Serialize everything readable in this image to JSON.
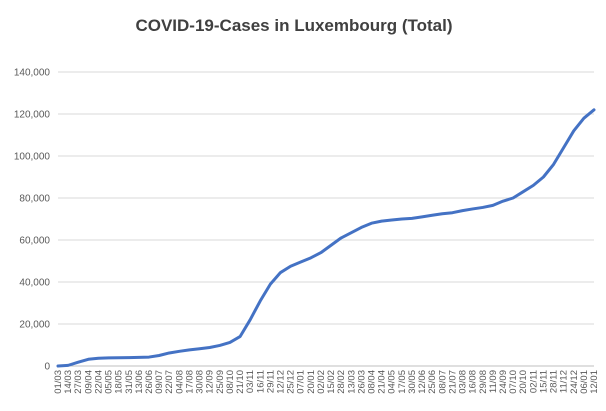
{
  "chart_data": {
    "type": "line",
    "title": "COVID-19-Cases in Luxembourg (Total)",
    "xlabel": "",
    "ylabel": "",
    "ylim": [
      0,
      140000
    ],
    "yticks": [
      0,
      20000,
      40000,
      60000,
      80000,
      100000,
      120000,
      140000
    ],
    "ytick_labels": [
      "0",
      "20,000",
      "40,000",
      "60,000",
      "80,000",
      "100,000",
      "120,000",
      "140,000"
    ],
    "grid": true,
    "legend": "none",
    "color": "#4472c4",
    "x_tick_labels": [
      "01/03",
      "14/03",
      "27/03",
      "09/04",
      "22/04",
      "05/05",
      "18/05",
      "31/05",
      "13/06",
      "26/06",
      "09/07",
      "22/07",
      "04/08",
      "17/08",
      "30/08",
      "12/09",
      "25/09",
      "08/10",
      "21/10",
      "03/11",
      "16/11",
      "29/11",
      "12/12",
      "25/12",
      "07/01",
      "20/01",
      "02/02",
      "15/02",
      "28/02",
      "13/03",
      "26/03",
      "08/04",
      "21/04",
      "04/05",
      "17/05",
      "30/05",
      "12/06",
      "25/06",
      "08/07",
      "21/07",
      "03/08",
      "16/08",
      "29/08",
      "11/09",
      "24/09",
      "07/10",
      "20/10",
      "02/11",
      "15/11",
      "28/11",
      "11/12",
      "24/12",
      "06/01",
      "12/01"
    ],
    "series": [
      {
        "x": [
          "01/03",
          "14/03",
          "27/03",
          "09/04",
          "22/04",
          "05/05",
          "18/05",
          "31/05",
          "13/06",
          "26/06",
          "09/07",
          "22/07",
          "04/08",
          "17/08",
          "30/08",
          "12/09",
          "25/09",
          "08/10",
          "21/10",
          "03/11",
          "16/11",
          "29/11",
          "12/12",
          "25/12",
          "07/01",
          "20/01",
          "02/02",
          "15/02",
          "28/02",
          "13/03",
          "26/03",
          "08/04",
          "21/04",
          "04/05",
          "17/05",
          "30/05",
          "12/06",
          "25/06",
          "08/07",
          "21/07",
          "03/08",
          "16/08",
          "29/08",
          "11/09",
          "24/09",
          "07/10",
          "20/10",
          "02/11",
          "15/11",
          "28/11",
          "11/12",
          "24/12",
          "06/01",
          "12/01"
        ],
        "values": [
          0,
          300,
          1800,
          3200,
          3700,
          3850,
          3950,
          4000,
          4100,
          4250,
          5000,
          6200,
          7000,
          7700,
          8200,
          8800,
          9800,
          11200,
          14000,
          22000,
          31000,
          39000,
          44500,
          47500,
          49500,
          51500,
          54000,
          57500,
          61000,
          63500,
          66000,
          68000,
          69000,
          69500,
          70000,
          70300,
          71000,
          71800,
          72500,
          73000,
          74000,
          74800,
          75500,
          76500,
          78500,
          80000,
          83000,
          86000,
          90000,
          96000,
          104000,
          112000,
          118000,
          122000
        ]
      }
    ]
  }
}
